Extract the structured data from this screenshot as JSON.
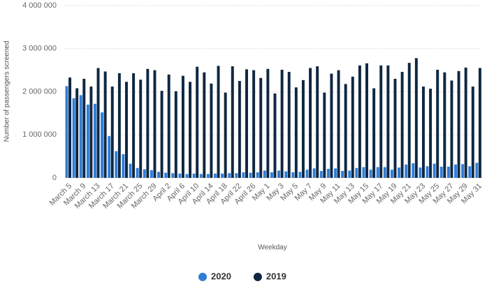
{
  "chart_data": {
    "type": "bar",
    "x_label": "Weekday",
    "y_label": "Number of passengers screened",
    "categories": [
      "March 5",
      null,
      "March 9",
      null,
      "March 13",
      null,
      "March 17",
      null,
      "March 21",
      null,
      "March 25",
      null,
      "March 29",
      null,
      "April 2",
      null,
      "April 6",
      null,
      "April 10",
      null,
      "April 14",
      null,
      "April 18",
      null,
      "April 22",
      null,
      "April 26",
      null,
      "May 1",
      null,
      "May 3",
      null,
      "May 5",
      null,
      "May 7",
      null,
      "May 9",
      null,
      "May 11",
      null,
      "May 13",
      null,
      "May 15",
      null,
      "May 17",
      null,
      "May 19",
      null,
      "May 21",
      null,
      "May 23",
      null,
      "May 25",
      null,
      "May 27",
      null,
      "May 29",
      null,
      "May 31"
    ],
    "series": [
      {
        "name": "2020",
        "color": "#2f7ed8",
        "values": [
          2130000,
          1850000,
          1920000,
          1700000,
          1720000,
          1520000,
          970000,
          620000,
          550000,
          330000,
          230000,
          200000,
          180000,
          140000,
          120000,
          110000,
          100000,
          90000,
          100000,
          90000,
          90000,
          100000,
          100000,
          110000,
          110000,
          130000,
          120000,
          130000,
          170000,
          130000,
          170000,
          150000,
          130000,
          140000,
          190000,
          220000,
          160000,
          210000,
          220000,
          160000,
          170000,
          230000,
          250000,
          190000,
          250000,
          250000,
          190000,
          240000,
          310000,
          340000,
          240000,
          270000,
          330000,
          260000,
          260000,
          310000,
          320000,
          270000,
          350000
        ]
      },
      {
        "name": "2019",
        "color": "#0f2741",
        "values": [
          2330000,
          2080000,
          2300000,
          2120000,
          2550000,
          2470000,
          2120000,
          2430000,
          2230000,
          2430000,
          2280000,
          2530000,
          2500000,
          2020000,
          2400000,
          2010000,
          2370000,
          2230000,
          2580000,
          2450000,
          2190000,
          2600000,
          1980000,
          2590000,
          2250000,
          2520000,
          2500000,
          2320000,
          2530000,
          1960000,
          2510000,
          2460000,
          2100000,
          2270000,
          2550000,
          2590000,
          1980000,
          2420000,
          2500000,
          2180000,
          2350000,
          2610000,
          2660000,
          2080000,
          2610000,
          2610000,
          2300000,
          2460000,
          2670000,
          2780000,
          2120000,
          2070000,
          2510000,
          2450000,
          2260000,
          2480000,
          2560000,
          2120000,
          2550000
        ]
      }
    ],
    "ylim": [
      0,
      4000000
    ],
    "yticks": [
      {
        "value": 0,
        "label": "0"
      },
      {
        "value": 1000000,
        "label": "1 000 000"
      },
      {
        "value": 2000000,
        "label": "2 000 000"
      },
      {
        "value": 3000000,
        "label": "3 000 000"
      },
      {
        "value": 4000000,
        "label": "4 000 000"
      }
    ],
    "grid": true,
    "legend": "bottom"
  }
}
